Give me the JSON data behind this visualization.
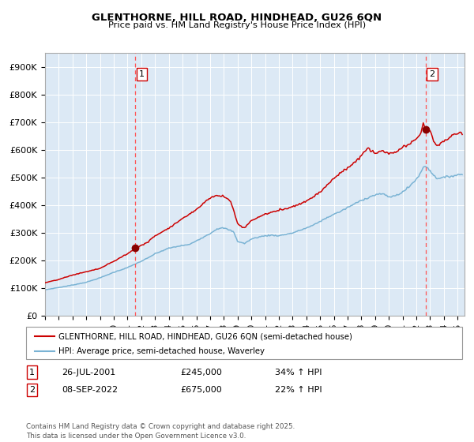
{
  "title": "GLENTHORNE, HILL ROAD, HINDHEAD, GU26 6QN",
  "subtitle": "Price paid vs. HM Land Registry's House Price Index (HPI)",
  "background_color": "#dce9f5",
  "plot_bg_color": "#dce9f5",
  "red_line_color": "#cc0000",
  "blue_line_color": "#7ab3d4",
  "marker_color": "#880000",
  "vline_color": "#ff5555",
  "ylim": [
    0,
    950000
  ],
  "yticks": [
    0,
    100000,
    200000,
    300000,
    400000,
    500000,
    600000,
    700000,
    800000,
    900000
  ],
  "ytick_labels": [
    "£0",
    "£100K",
    "£200K",
    "£300K",
    "£400K",
    "£500K",
    "£600K",
    "£700K",
    "£800K",
    "£900K"
  ],
  "sale1_date_label": "26-JUL-2001",
  "sale1_price": 245000,
  "sale1_price_label": "£245,000",
  "sale1_hpi_label": "34% ↑ HPI",
  "sale1_x": 2001.57,
  "sale2_date_label": "08-SEP-2022",
  "sale2_price": 675000,
  "sale2_price_label": "£675,000",
  "sale2_hpi_label": "22% ↑ HPI",
  "sale2_x": 2022.69,
  "legend_label_red": "GLENTHORNE, HILL ROAD, HINDHEAD, GU26 6QN (semi-detached house)",
  "legend_label_blue": "HPI: Average price, semi-detached house, Waverley",
  "footnote": "Contains HM Land Registry data © Crown copyright and database right 2025.\nThis data is licensed under the Open Government Licence v3.0.",
  "xmin": 1995.0,
  "xmax": 2025.5
}
